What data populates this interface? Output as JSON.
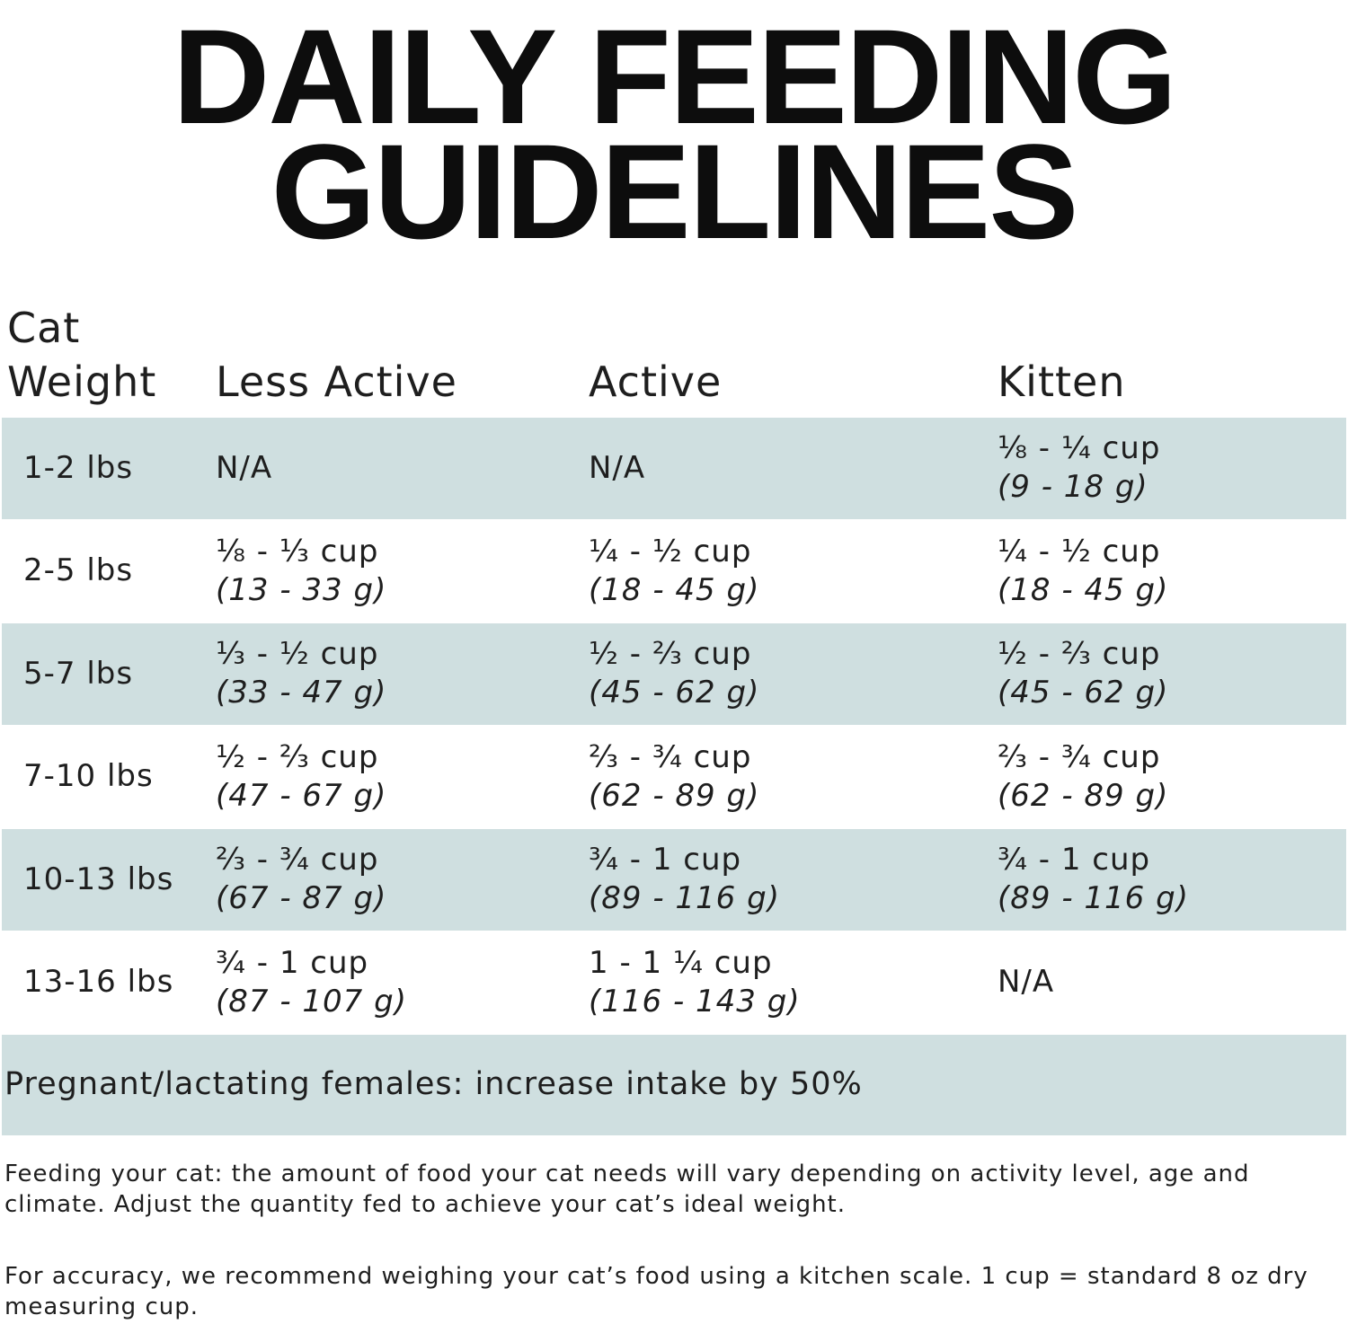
{
  "header": {
    "title": [
      "DAILY FEEDING",
      "GUIDELINES"
    ]
  },
  "table": {
    "columns": [
      [
        "Cat",
        "Weight"
      ],
      "Less Active",
      "Active",
      "Kitten"
    ],
    "rows": [
      [
        "1-2 lbs",
        {
          "amount": "N/A"
        },
        {
          "amount": "N/A"
        },
        {
          "amount": "⅛ - ¼ cup",
          "grams": "(9 - 18 g)"
        }
      ],
      [
        "2-5 lbs",
        {
          "amount": "⅛ - ⅓ cup",
          "grams": "(13 - 33 g)"
        },
        {
          "amount": "¼ - ½ cup",
          "grams": "(18 - 45 g)"
        },
        {
          "amount": "¼ - ½ cup",
          "grams": "(18 - 45 g)"
        }
      ],
      [
        "5-7 lbs",
        {
          "amount": "⅓ - ½ cup",
          "grams": "(33 - 47 g)"
        },
        {
          "amount": "½ - ⅔ cup",
          "grams": "(45 - 62 g)"
        },
        {
          "amount": "½ - ⅔ cup",
          "grams": "(45 - 62 g)"
        }
      ],
      [
        "7-10 lbs",
        {
          "amount": "½ - ⅔ cup",
          "grams": "(47 - 67 g)"
        },
        {
          "amount": "⅔ - ¾ cup",
          "grams": "(62 - 89 g)"
        },
        {
          "amount": "⅔ - ¾ cup",
          "grams": "(62 - 89 g)"
        }
      ],
      [
        "10-13 lbs",
        {
          "amount": "⅔ - ¾ cup",
          "grams": "(67 - 87 g)"
        },
        {
          "amount": "¾ - 1 cup",
          "grams": "(89 - 116 g)"
        },
        {
          "amount": "¾ - 1 cup",
          "grams": "(89 - 116 g)"
        }
      ],
      [
        "13-16 lbs",
        {
          "amount": "¾ - 1 cup",
          "grams": "(87 - 107 g)"
        },
        {
          "amount": "1 - 1 ¼ cup",
          "grams": "(116 - 143 g)"
        },
        {
          "amount": "N/A"
        }
      ]
    ],
    "footer": "Pregnant/lactating females: increase intake by 50%"
  },
  "notes": [
    "Feeding your cat: the amount of food your cat needs will vary depending on activity level, age and climate. Adjust the quantity fed to achieve your cat’s ideal weight.",
    "For accuracy, we recommend weighing your cat’s food using a kitchen scale. 1 cup = standard 8 oz dry measuring cup."
  ]
}
